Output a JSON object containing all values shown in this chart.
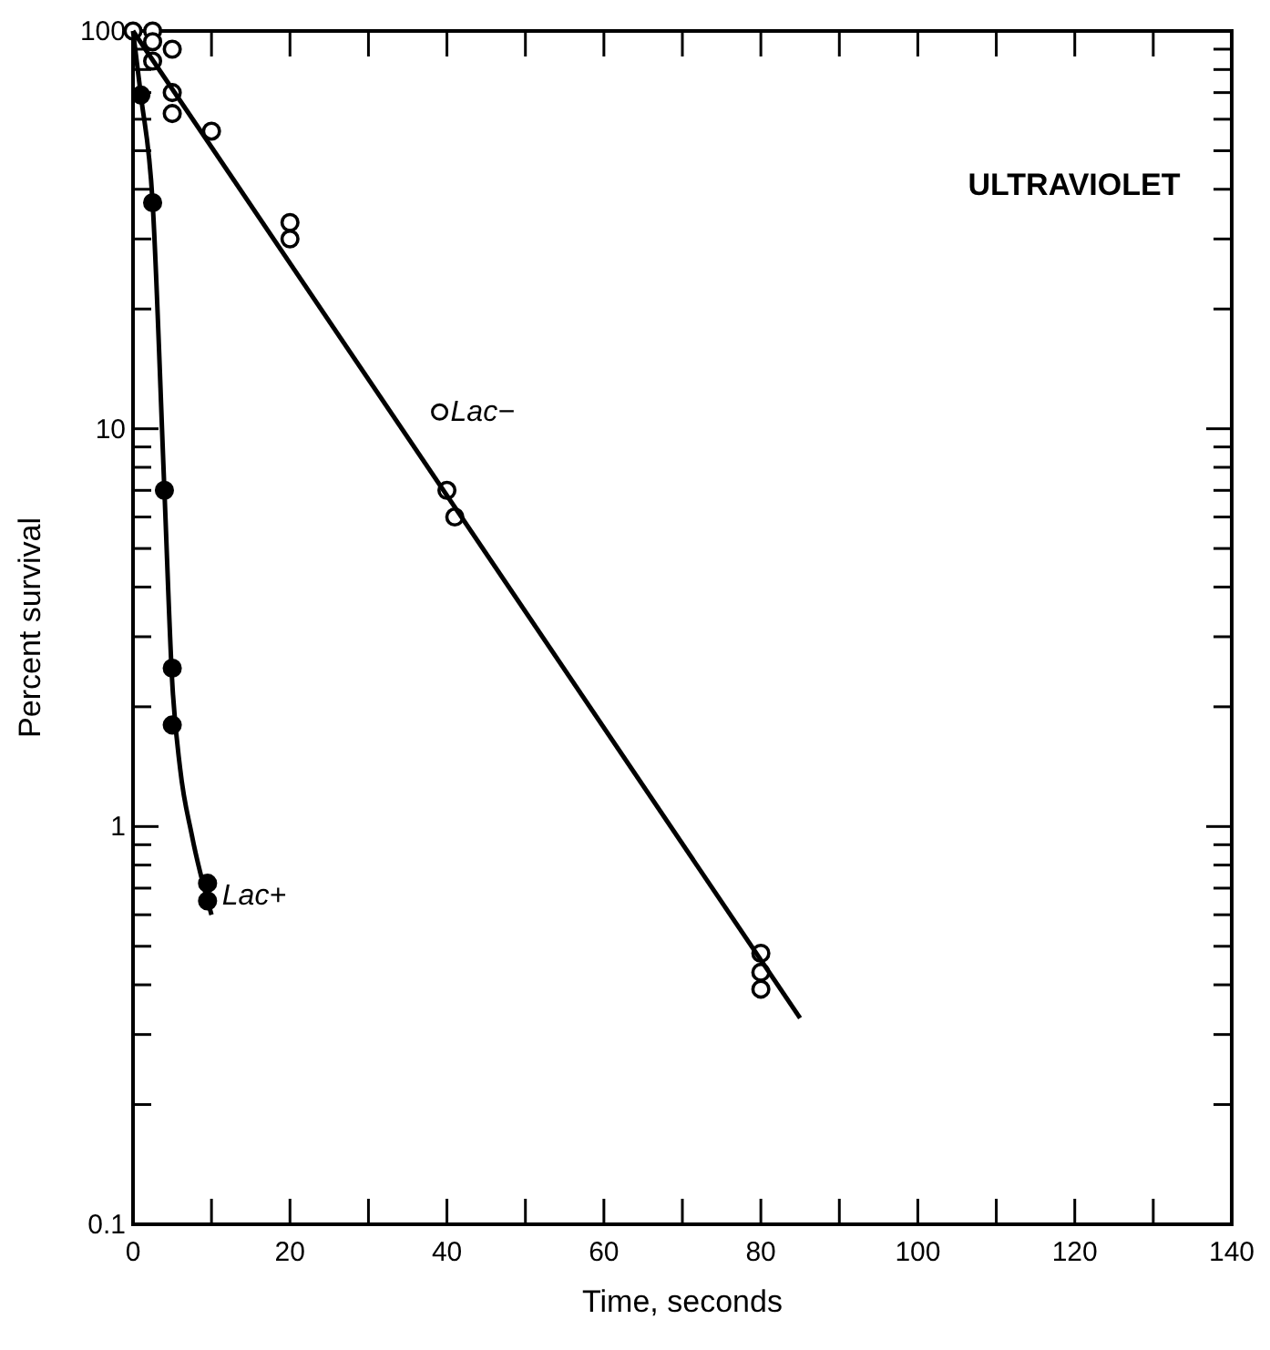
{
  "chart_data": {
    "type": "scatter",
    "title": "ULTRAVIOLET",
    "xlabel": "Time, seconds",
    "ylabel": "Percent survival",
    "log": "y",
    "marker": "circle",
    "grid": false,
    "xlim": [
      0,
      140
    ],
    "xticks": [
      0,
      {
        "value": 10,
        "label": null
      },
      20,
      {
        "value": 30,
        "label": null
      },
      40,
      {
        "value": 50,
        "label": null
      },
      60,
      {
        "value": 70,
        "label": null
      },
      80,
      {
        "value": 90,
        "label": null
      },
      100,
      {
        "value": 110,
        "label": null
      },
      120,
      {
        "value": 130,
        "label": null
      },
      140
    ],
    "ylim": [
      0.1,
      100
    ],
    "yticks": [
      0.1,
      {
        "value": 0.2,
        "label": null
      },
      {
        "value": 0.3,
        "label": null
      },
      {
        "value": 0.4,
        "label": null
      },
      {
        "value": 0.5,
        "label": null
      },
      {
        "value": 0.6,
        "label": null
      },
      {
        "value": 0.7,
        "label": null
      },
      {
        "value": 0.8,
        "label": null
      },
      {
        "value": 0.9,
        "label": null
      },
      1,
      {
        "value": 2,
        "label": null
      },
      {
        "value": 3,
        "label": null
      },
      {
        "value": 4,
        "label": null
      },
      {
        "value": 5,
        "label": null
      },
      {
        "value": 6,
        "label": null
      },
      {
        "value": 7,
        "label": null
      },
      {
        "value": 8,
        "label": null
      },
      {
        "value": 9,
        "label": null
      },
      10,
      {
        "value": 20,
        "label": null
      },
      {
        "value": 30,
        "label": null
      },
      {
        "value": 40,
        "label": null
      },
      {
        "value": 50,
        "label": null
      },
      {
        "value": 60,
        "label": null
      },
      {
        "value": 70,
        "label": null
      },
      {
        "value": 80,
        "label": null
      },
      {
        "value": 90,
        "label": null
      },
      100
    ],
    "series": [
      {
        "name": "Lac−",
        "color": "#000000",
        "x": [
          0,
          2.5,
          2.5,
          2.5,
          5,
          5,
          5,
          10,
          20,
          20,
          40,
          41,
          80,
          80,
          80
        ],
        "values": [
          100,
          100,
          94,
          84,
          90,
          70,
          62,
          56,
          33,
          30,
          7,
          6,
          0.48,
          0.43,
          0.39
        ]
      },
      {
        "type": "line",
        "marker": "none",
        "color": "#000000",
        "x": [
          0,
          85
        ],
        "values": [
          100,
          0.33
        ]
      },
      {
        "name": "Lac+",
        "color": "#000000",
        "x": [
          1,
          2.5,
          4,
          5,
          5,
          9.5,
          9.5
        ],
        "values": [
          69,
          37,
          7,
          2.5,
          1.8,
          0.72,
          0.65
        ]
      },
      {
        "type": "line",
        "marker": "none",
        "color": "#000000",
        "x": [
          0,
          1,
          2.5,
          4,
          5,
          6,
          7.5,
          10
        ],
        "values": [
          100,
          69,
          37,
          7,
          2.3,
          1.4,
          0.95,
          0.6
        ]
      }
    ]
  }
}
